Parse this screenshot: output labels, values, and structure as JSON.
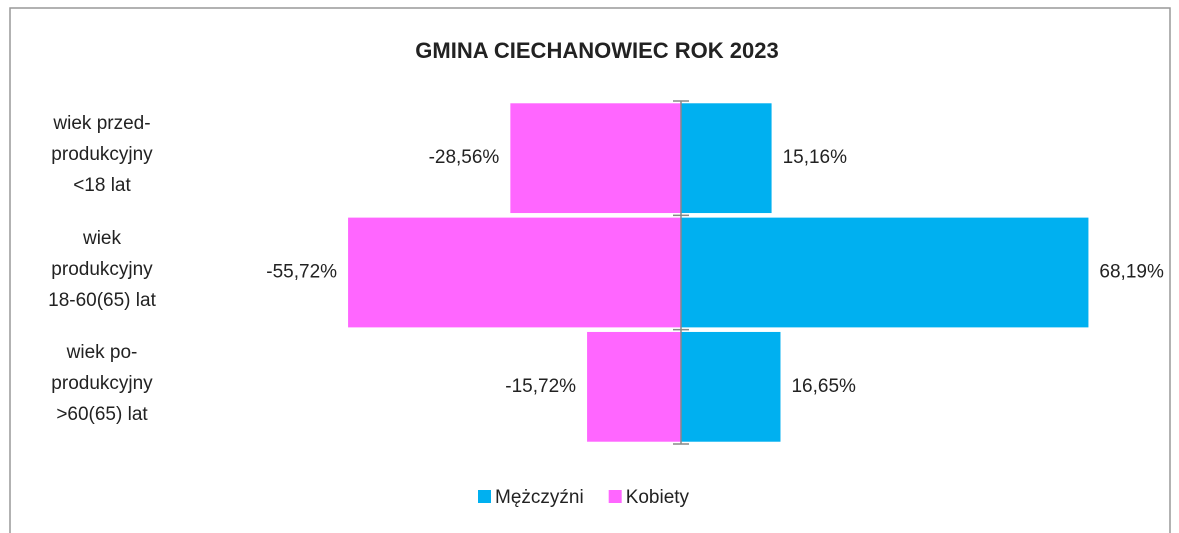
{
  "chart_data": {
    "type": "bar",
    "orientation": "horizontal",
    "title": "GMINA CIECHANOWIEC ROK 2023",
    "categories": [
      "wiek przed-\nprodukcyjny\n<18 lat",
      "wiek\nprodukcyjny\n18-60(65) lat",
      "wiek po-\nprodukcyjny\n>60(65) lat"
    ],
    "series": [
      {
        "name": "Mężczyźni",
        "color": "#00b0f0",
        "values": [
          15.16,
          68.19,
          16.65
        ],
        "value_labels": [
          "15,16%",
          "68,19%",
          "16,65%"
        ]
      },
      {
        "name": "Kobiety",
        "color": "#ff66ff",
        "values": [
          -28.56,
          -55.72,
          -15.72
        ],
        "value_labels": [
          "-28,56%",
          "-55,72%",
          "-15,72%"
        ]
      }
    ],
    "xlim": [
      -80,
      80
    ]
  }
}
